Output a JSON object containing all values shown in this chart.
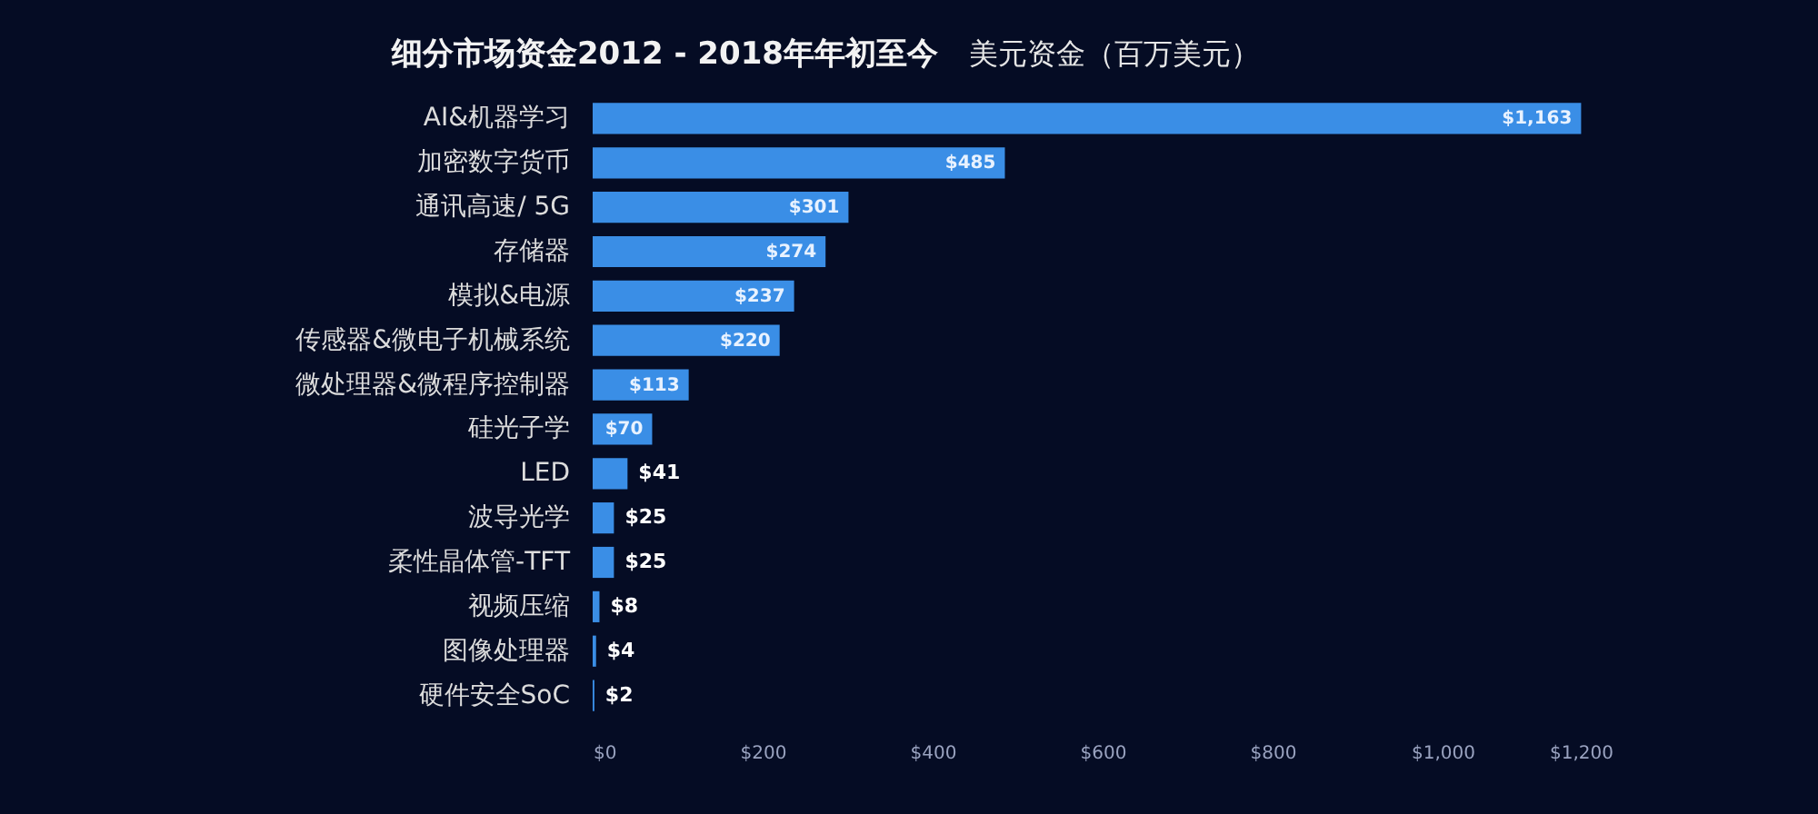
{
  "chart_data": {
    "type": "bar",
    "orientation": "horizontal",
    "title": "细分市场资金2012 - 2018年年初至今",
    "subtitle": "美元资金（百万美元）",
    "categories": [
      "AI&机器学习",
      "加密数字货币",
      "通讯高速/ 5G",
      "存储器",
      "模拟&电源",
      "传感器&微电子机械系统",
      "微处理器&微程序控制器",
      "硅光子学",
      "LED",
      "波导光学",
      "柔性晶体管-TFT",
      "视频压缩",
      "图像处理器",
      "硬件安全SoC"
    ],
    "values": [
      1163,
      485,
      301,
      274,
      237,
      220,
      113,
      70,
      41,
      25,
      25,
      8,
      4,
      2
    ],
    "value_labels": [
      "$1,163",
      "$485",
      "$301",
      "$274",
      "$237",
      "$220",
      "$113",
      "$70",
      "$41",
      "$25",
      "$25",
      "$8",
      "$4",
      "$2"
    ],
    "color": "#3a8ee6",
    "xlim": [
      0,
      1200
    ],
    "xticks": [
      {
        "value": 0,
        "label": "$0"
      },
      {
        "value": 200,
        "label": "$200"
      },
      {
        "value": 400,
        "label": "$400"
      },
      {
        "value": 600,
        "label": "$600"
      },
      {
        "value": 800,
        "label": "$800"
      },
      {
        "value": 1000,
        "label": "$1,000"
      },
      {
        "value": 1200,
        "label": "$1,200"
      }
    ]
  }
}
